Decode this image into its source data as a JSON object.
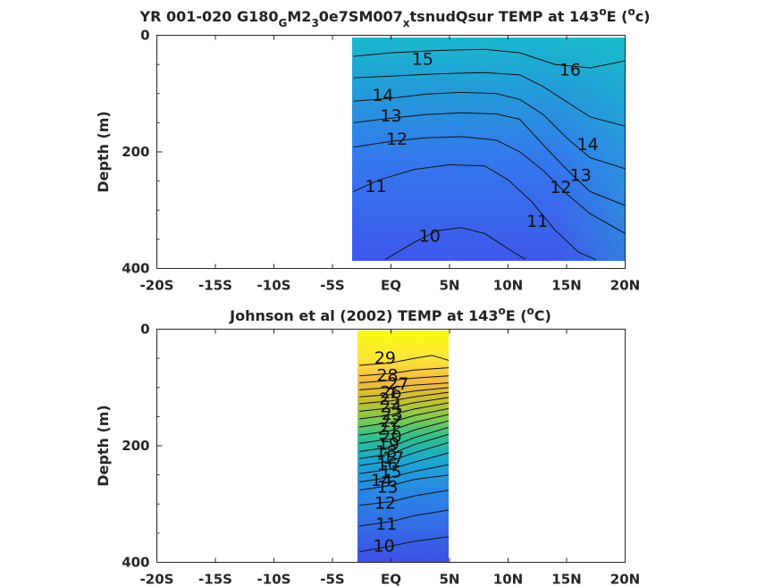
{
  "chart_data": [
    {
      "type": "heatmap",
      "title": {
        "main": "YR 001-020 G180",
        "sub1": "G",
        "mid1": "M2",
        "sub2": "3",
        "mid2": "0e7SM007",
        "sub3": "x",
        "mid3": "tsnudQsur TEMP at 143",
        "sup1": "o",
        "mid4": "E (",
        "sup2": "o",
        "end": "c)"
      },
      "ylabel": "Depth (m)",
      "xlim": [
        -20,
        20
      ],
      "ylim": [
        0,
        400
      ],
      "y_reversed": true,
      "x_ticks": [
        -20,
        -15,
        -10,
        -5,
        0,
        5,
        10,
        15,
        20
      ],
      "x_tick_labels": [
        "-20S",
        "-15S",
        "-10S",
        "-5S",
        "EQ",
        "5N",
        "10N",
        "15N",
        "20N"
      ],
      "y_ticks": [
        0,
        200,
        400
      ],
      "y_tick_labels": [
        "0",
        "200",
        "400"
      ],
      "data_xrange": [
        -3.2,
        20
      ],
      "data_yrange": [
        0,
        385
      ],
      "contour_labels": [
        {
          "text": "15",
          "x": 2.7,
          "y": 40
        },
        {
          "text": "16",
          "x": 15.3,
          "y": 58
        },
        {
          "text": "14",
          "x": -0.7,
          "y": 102
        },
        {
          "text": "13",
          "x": 0.0,
          "y": 137
        },
        {
          "text": "12",
          "x": 0.5,
          "y": 177
        },
        {
          "text": "14",
          "x": 16.8,
          "y": 186
        },
        {
          "text": "13",
          "x": 16.2,
          "y": 239
        },
        {
          "text": "12",
          "x": 14.5,
          "y": 260
        },
        {
          "text": "11",
          "x": -1.3,
          "y": 258
        },
        {
          "text": "11",
          "x": 12.5,
          "y": 318
        },
        {
          "text": "10",
          "x": 3.3,
          "y": 343
        }
      ],
      "contours": [
        [
          [
            -3.2,
            36
          ],
          [
            0,
            30
          ],
          [
            4,
            26
          ],
          [
            8,
            24
          ],
          [
            11,
            30
          ],
          [
            14,
            50
          ],
          [
            17,
            56
          ],
          [
            20,
            44
          ]
        ],
        [
          [
            -3.2,
            73
          ],
          [
            0,
            70
          ],
          [
            4,
            66
          ],
          [
            8,
            64
          ],
          [
            11,
            68
          ],
          [
            13,
            88
          ],
          [
            15,
            114
          ],
          [
            17,
            140
          ],
          [
            20,
            156
          ]
        ],
        [
          [
            -3.2,
            113
          ],
          [
            0,
            108
          ],
          [
            3,
            101
          ],
          [
            6,
            98
          ],
          [
            9,
            100
          ],
          [
            11,
            110
          ],
          [
            13,
            136
          ],
          [
            15,
            176
          ],
          [
            17,
            210
          ],
          [
            20,
            229
          ]
        ],
        [
          [
            -3.2,
            150
          ],
          [
            0,
            142
          ],
          [
            3,
            136
          ],
          [
            6,
            133
          ],
          [
            9,
            135
          ],
          [
            11,
            144
          ],
          [
            13,
            188
          ],
          [
            15,
            230
          ],
          [
            17,
            268
          ],
          [
            20,
            292
          ]
        ],
        [
          [
            -3.2,
            192
          ],
          [
            0,
            182
          ],
          [
            3,
            176
          ],
          [
            6,
            174
          ],
          [
            9,
            180
          ],
          [
            11,
            200
          ],
          [
            13,
            232
          ],
          [
            15,
            272
          ],
          [
            17,
            306
          ],
          [
            20,
            340
          ]
        ],
        [
          [
            -3.2,
            268
          ],
          [
            -1,
            248
          ],
          [
            2,
            230
          ],
          [
            5,
            222
          ],
          [
            8,
            224
          ],
          [
            10,
            248
          ],
          [
            12,
            285
          ],
          [
            14,
            334
          ],
          [
            16,
            372
          ],
          [
            17.5,
            385
          ]
        ],
        [
          [
            -0.5,
            385
          ],
          [
            2,
            355
          ],
          [
            4,
            335
          ],
          [
            6,
            330
          ],
          [
            8,
            340
          ],
          [
            10,
            366
          ],
          [
            11.5,
            385
          ]
        ]
      ]
    },
    {
      "type": "heatmap",
      "title": {
        "main": "Johnson et al (2002) TEMP at 143",
        "sup1": "o",
        "mid": "E (",
        "sup2": "o",
        "end": "C)"
      },
      "ylabel": "Depth (m)",
      "xlim": [
        -20,
        20
      ],
      "ylim": [
        0,
        400
      ],
      "y_reversed": true,
      "x_ticks": [
        -20,
        -15,
        -10,
        -5,
        0,
        5,
        10,
        15,
        20
      ],
      "x_tick_labels": [
        "-20S",
        "-15S",
        "-10S",
        "-5S",
        "EQ",
        "5N",
        "10N",
        "15N",
        "20N"
      ],
      "y_ticks": [
        0,
        200,
        400
      ],
      "y_tick_labels": [
        "0",
        "200",
        "400"
      ],
      "data_xrange": [
        -2.7,
        5
      ],
      "data_yrange": [
        0,
        400
      ],
      "contour_labels": [
        {
          "text": "29",
          "x": -0.5,
          "y": 48
        },
        {
          "text": "28",
          "x": -0.3,
          "y": 78
        },
        {
          "text": "27",
          "x": 0.6,
          "y": 93
        },
        {
          "text": "26",
          "x": 0.0,
          "y": 107
        },
        {
          "text": "25",
          "x": -0.1,
          "y": 119
        },
        {
          "text": "24",
          "x": 0.0,
          "y": 132
        },
        {
          "text": "23",
          "x": 0.1,
          "y": 145
        },
        {
          "text": "22",
          "x": 0.0,
          "y": 157
        },
        {
          "text": "21",
          "x": -0.2,
          "y": 170
        },
        {
          "text": "20",
          "x": 0.0,
          "y": 183
        },
        {
          "text": "19",
          "x": -0.2,
          "y": 196
        },
        {
          "text": "18",
          "x": -0.4,
          "y": 209
        },
        {
          "text": "17",
          "x": 0.2,
          "y": 220
        },
        {
          "text": "16",
          "x": -0.3,
          "y": 231
        },
        {
          "text": "15",
          "x": 0.0,
          "y": 244
        },
        {
          "text": "14",
          "x": -0.8,
          "y": 258
        },
        {
          "text": "13",
          "x": -0.3,
          "y": 270
        },
        {
          "text": "12",
          "x": -0.5,
          "y": 297
        },
        {
          "text": "11",
          "x": -0.4,
          "y": 333
        },
        {
          "text": "10",
          "x": -0.6,
          "y": 371
        }
      ],
      "contours": [
        [
          [
            -2.7,
            62
          ],
          [
            0,
            58
          ],
          [
            2,
            50
          ],
          [
            3.5,
            45
          ],
          [
            5,
            54
          ]
        ],
        [
          [
            -2.7,
            80
          ],
          [
            0,
            76
          ],
          [
            2,
            70
          ],
          [
            5,
            66
          ]
        ],
        [
          [
            -2.7,
            92
          ],
          [
            0,
            88
          ],
          [
            2,
            84
          ],
          [
            5,
            80
          ]
        ],
        [
          [
            -2.7,
            104
          ],
          [
            0,
            100
          ],
          [
            2,
            96
          ],
          [
            5,
            92
          ]
        ],
        [
          [
            -2.7,
            116
          ],
          [
            0,
            112
          ],
          [
            2,
            106
          ],
          [
            5,
            100
          ]
        ],
        [
          [
            -2.7,
            128
          ],
          [
            0,
            123
          ],
          [
            2,
            116
          ],
          [
            5,
            108
          ]
        ],
        [
          [
            -2.7,
            141
          ],
          [
            0,
            135
          ],
          [
            2,
            126
          ],
          [
            5,
            117
          ]
        ],
        [
          [
            -2.7,
            154
          ],
          [
            0,
            147
          ],
          [
            2,
            137
          ],
          [
            5,
            126
          ]
        ],
        [
          [
            -2.7,
            168
          ],
          [
            0,
            160
          ],
          [
            2,
            148
          ],
          [
            5,
            136
          ]
        ],
        [
          [
            -2.7,
            182
          ],
          [
            0,
            174
          ],
          [
            2,
            160
          ],
          [
            5,
            146
          ]
        ],
        [
          [
            -2.7,
            196
          ],
          [
            0,
            188
          ],
          [
            2,
            173
          ],
          [
            5,
            157
          ]
        ],
        [
          [
            -2.7,
            210
          ],
          [
            0,
            202
          ],
          [
            2,
            186
          ],
          [
            5,
            168
          ]
        ],
        [
          [
            -2.7,
            222
          ],
          [
            0,
            214
          ],
          [
            2,
            198
          ],
          [
            5,
            180
          ]
        ],
        [
          [
            -2.7,
            234
          ],
          [
            0,
            226
          ],
          [
            2,
            212
          ],
          [
            5,
            194
          ]
        ],
        [
          [
            -2.7,
            248
          ],
          [
            0,
            240
          ],
          [
            2,
            228
          ],
          [
            5,
            212
          ]
        ],
        [
          [
            -2.7,
            262
          ],
          [
            0,
            254
          ],
          [
            2,
            244
          ],
          [
            5,
            232
          ]
        ],
        [
          [
            -2.7,
            276
          ],
          [
            0,
            268
          ],
          [
            2,
            258
          ],
          [
            5,
            250
          ]
        ],
        [
          [
            -2.7,
            302
          ],
          [
            0,
            296
          ],
          [
            2,
            286
          ],
          [
            5,
            276
          ]
        ],
        [
          [
            -2.7,
            338
          ],
          [
            0,
            330
          ],
          [
            2,
            320
          ],
          [
            5,
            310
          ]
        ],
        [
          [
            -2.7,
            382
          ],
          [
            0,
            372
          ],
          [
            2,
            364
          ],
          [
            5,
            356
          ]
        ]
      ]
    }
  ]
}
